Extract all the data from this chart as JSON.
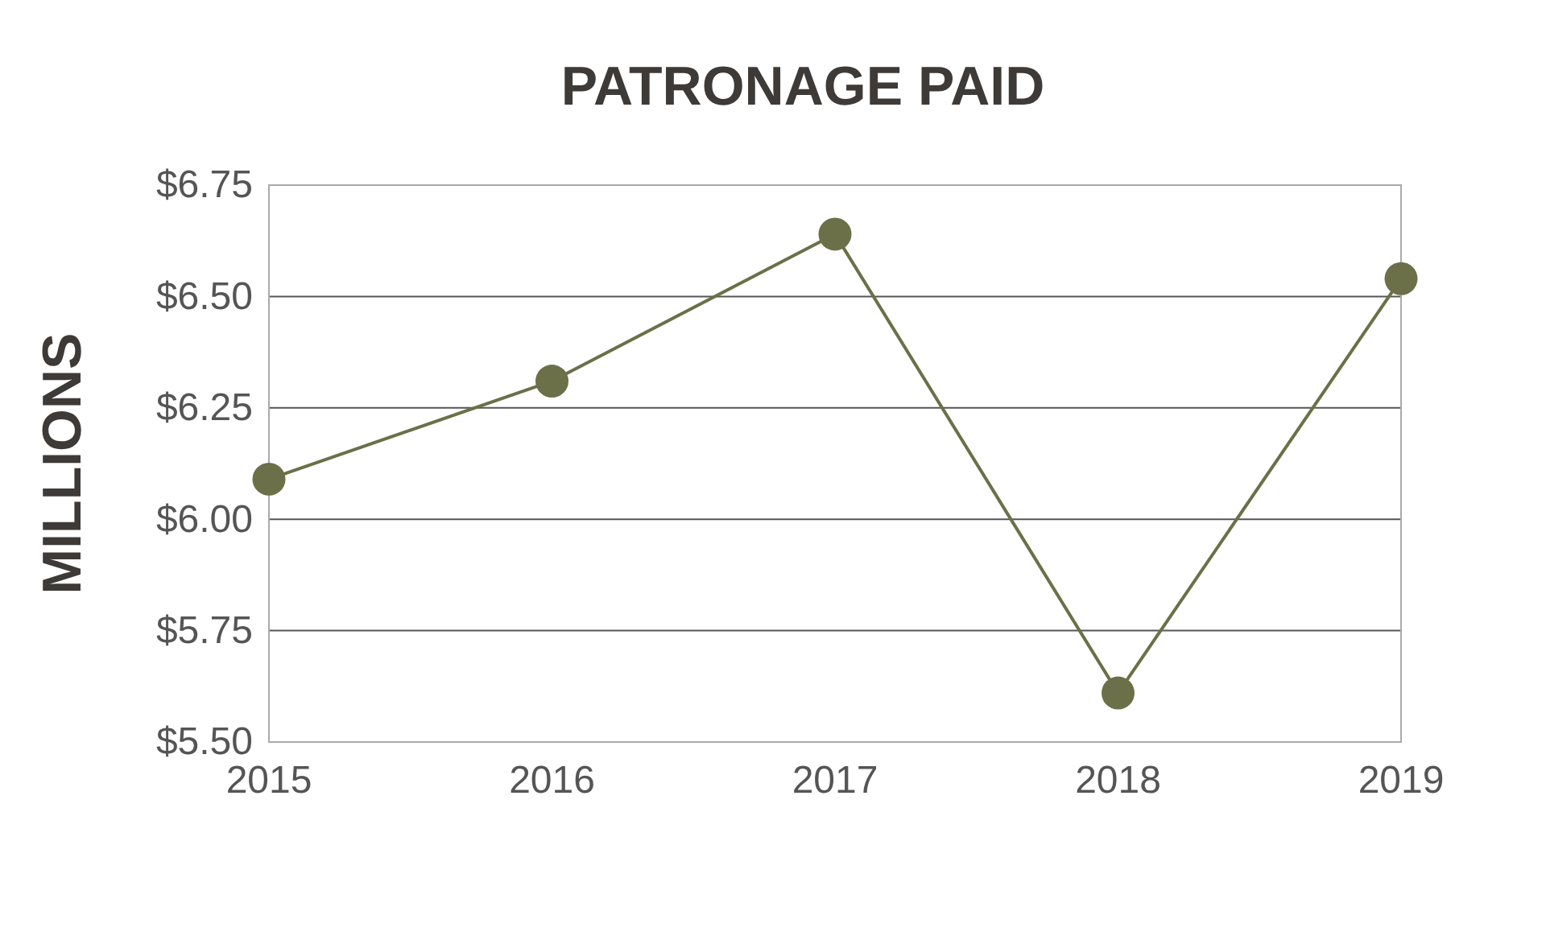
{
  "chart_data": {
    "type": "line",
    "title": "PATRONAGE PAID",
    "ylabel": "MILLIONS",
    "categories": [
      "2015",
      "2016",
      "2017",
      "2018",
      "2019"
    ],
    "series": [
      {
        "color": "#6b7048",
        "values": [
          6.09,
          6.31,
          6.64,
          5.61,
          6.54
        ]
      }
    ],
    "ylim": [
      5.5,
      6.75
    ],
    "yticks": [
      {
        "value": 5.5,
        "label": "$5.50"
      },
      {
        "value": 5.75,
        "label": "$5.75"
      },
      {
        "value": 6,
        "label": "$6.00"
      },
      {
        "value": 6.25,
        "label": "$6.25"
      },
      {
        "value": 6.5,
        "label": "$6.50"
      },
      {
        "value": 6.75,
        "label": "$6.75"
      }
    ],
    "grid": "y",
    "marker": "circle",
    "line_style": "solid"
  }
}
